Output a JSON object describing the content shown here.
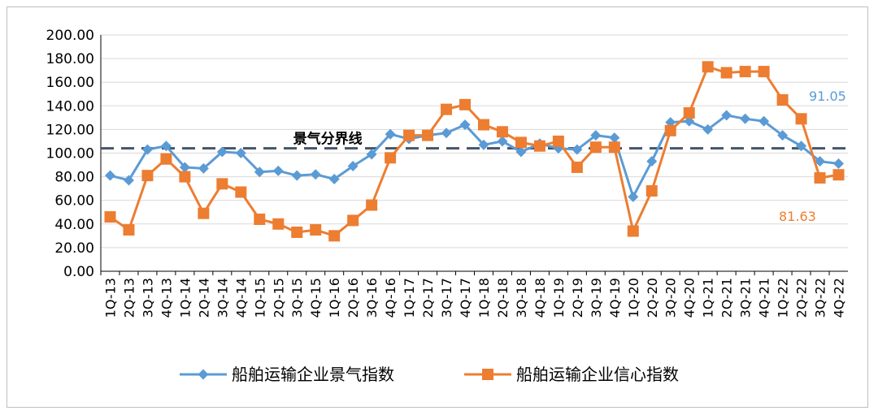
{
  "chart_data": {
    "type": "line",
    "title": "",
    "xlabel": "",
    "ylabel": "",
    "ylim": [
      0,
      200
    ],
    "yticks": [
      "0.00",
      "20.00",
      "40.00",
      "60.00",
      "80.00",
      "100.00",
      "120.00",
      "140.00",
      "160.00",
      "180.00",
      "200.00"
    ],
    "grid": "horizontal",
    "legend_position": "bottom",
    "categories": [
      "1Q-13",
      "2Q-13",
      "3Q-13",
      "4Q-13",
      "1Q-14",
      "2Q-14",
      "3Q-14",
      "4Q-14",
      "1Q-15",
      "2Q-15",
      "3Q-15",
      "4Q-15",
      "1Q-16",
      "2Q-16",
      "3Q-16",
      "4Q-16",
      "1Q-17",
      "2Q-17",
      "3Q-17",
      "4Q-17",
      "1Q-18",
      "2Q-18",
      "3Q-18",
      "4Q-18",
      "1Q-19",
      "2Q-19",
      "3Q-19",
      "4Q-19",
      "1Q-20",
      "2Q-20",
      "3Q-20",
      "4Q-20",
      "1Q-21",
      "2Q-21",
      "3Q-21",
      "4Q-21",
      "1Q-22",
      "2Q-22",
      "3Q-22",
      "4Q-22"
    ],
    "series": [
      {
        "name": "船舶运输企业景气指数",
        "color": "#5b9bd5",
        "marker": "diamond",
        "values": [
          81,
          77,
          103,
          106,
          88,
          87,
          101,
          100,
          84,
          85,
          81,
          82,
          78,
          89,
          99,
          116,
          112,
          115,
          117,
          124,
          107,
          110,
          101,
          108,
          104,
          103,
          115,
          113,
          63,
          93,
          126,
          127,
          120,
          132,
          129,
          127,
          115,
          106,
          93,
          91.05
        ]
      },
      {
        "name": "船舶运输企业信心指数",
        "color": "#ed7d31",
        "marker": "square",
        "values": [
          46,
          35,
          81,
          95,
          80,
          49,
          74,
          67,
          44,
          40,
          33,
          35,
          30,
          43,
          56,
          96,
          115,
          115,
          137,
          141,
          124,
          118,
          109,
          106,
          110,
          88,
          105,
          105,
          34,
          68,
          119,
          134,
          173,
          168,
          169,
          169,
          145,
          129,
          79,
          81.63
        ]
      }
    ],
    "reference_line": {
      "value": 104,
      "label": "景气分界线",
      "color": "#44546a"
    },
    "annotations": [
      {
        "text": "91.05",
        "series": 0,
        "color": "#5b9bd5"
      },
      {
        "text": "81.63",
        "series": 1,
        "color": "#ed7d31"
      }
    ]
  }
}
